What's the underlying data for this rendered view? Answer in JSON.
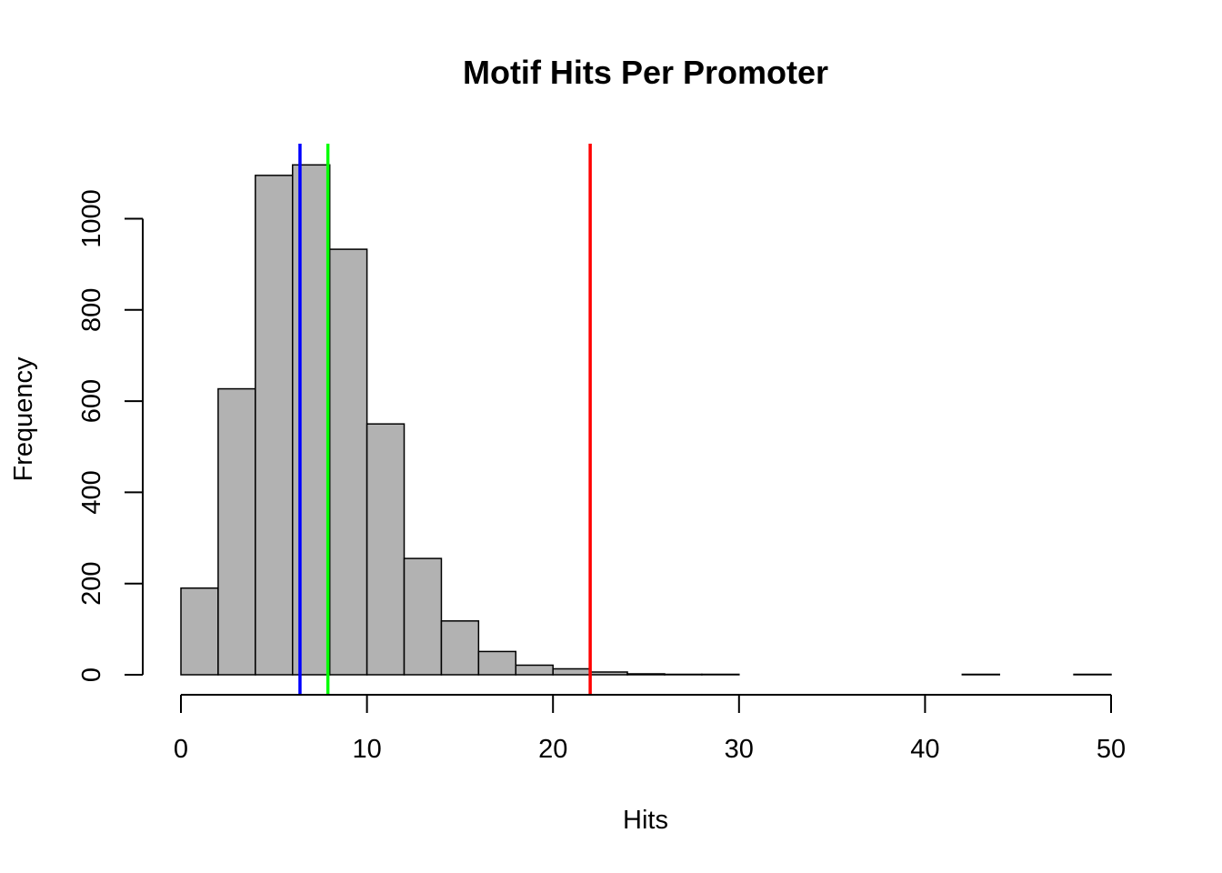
{
  "chart_data": {
    "type": "bar",
    "title": "Motif Hits Per Promoter",
    "xlabel": "Hits",
    "ylabel": "Frequency",
    "bin_width": 2,
    "bins": [
      {
        "start": 0,
        "end": 2,
        "count": 190
      },
      {
        "start": 2,
        "end": 4,
        "count": 627
      },
      {
        "start": 4,
        "end": 6,
        "count": 1095
      },
      {
        "start": 6,
        "end": 8,
        "count": 1118
      },
      {
        "start": 8,
        "end": 10,
        "count": 933
      },
      {
        "start": 10,
        "end": 12,
        "count": 550
      },
      {
        "start": 12,
        "end": 14,
        "count": 255
      },
      {
        "start": 14,
        "end": 16,
        "count": 118
      },
      {
        "start": 16,
        "end": 18,
        "count": 51
      },
      {
        "start": 18,
        "end": 20,
        "count": 21
      },
      {
        "start": 20,
        "end": 22,
        "count": 13
      },
      {
        "start": 22,
        "end": 24,
        "count": 6
      },
      {
        "start": 24,
        "end": 26,
        "count": 2
      },
      {
        "start": 26,
        "end": 28,
        "count": 1
      },
      {
        "start": 28,
        "end": 30,
        "count": 1
      },
      {
        "start": 30,
        "end": 32,
        "count": 0
      },
      {
        "start": 32,
        "end": 34,
        "count": 0
      },
      {
        "start": 34,
        "end": 36,
        "count": 0
      },
      {
        "start": 36,
        "end": 38,
        "count": 0
      },
      {
        "start": 38,
        "end": 40,
        "count": 0
      },
      {
        "start": 40,
        "end": 42,
        "count": 0
      },
      {
        "start": 42,
        "end": 44,
        "count": 1
      },
      {
        "start": 44,
        "end": 46,
        "count": 0
      },
      {
        "start": 46,
        "end": 48,
        "count": 0
      },
      {
        "start": 48,
        "end": 50,
        "count": 1
      }
    ],
    "vertical_lines": [
      {
        "x": 6.4,
        "color": "#0000ff"
      },
      {
        "x": 7.9,
        "color": "#00ff00"
      },
      {
        "x": 22.0,
        "color": "#ff0000"
      }
    ],
    "xlim": [
      0,
      50
    ],
    "ylim": [
      0,
      1160
    ],
    "x_ticks": [
      0,
      10,
      20,
      30,
      40,
      50
    ],
    "y_ticks": [
      0,
      200,
      400,
      600,
      800,
      1000
    ],
    "bar_fill": "#b2b2b2",
    "bar_stroke": "#000000",
    "grid": false,
    "legend": "none"
  }
}
